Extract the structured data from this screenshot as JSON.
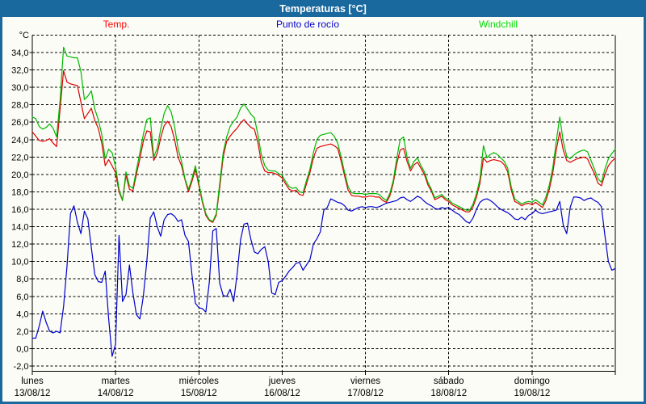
{
  "window": {
    "title": "Temperaturas [°C]"
  },
  "colors": {
    "frame_blue": "#19689e",
    "body_background": "#fcfcf6",
    "grid": "#000000",
    "temp_line": "#dc0000",
    "dew_line": "#0000cc",
    "windchill_line": "#00b800",
    "legend_temp": "#ff0000",
    "legend_dew": "#0000cc",
    "legend_windchill": "#00dd00"
  },
  "legend": [
    {
      "label": "Temp."
    },
    {
      "label": "Punto de rocío"
    },
    {
      "label": "Windchill"
    }
  ],
  "axis": {
    "unit_label": "°C",
    "y_tick_labels": [
      "34,0",
      "32,0",
      "30,0",
      "28,0",
      "26,0",
      "24,0",
      "22,0",
      "20,0",
      "18,0",
      "16,0",
      "14,0",
      "12,0",
      "10,0",
      "8,0",
      "6,0",
      "4,0",
      "2,0",
      "0,0",
      "-2,0"
    ],
    "y_tick_values": [
      34,
      32,
      30,
      28,
      26,
      24,
      22,
      20,
      18,
      16,
      14,
      12,
      10,
      8,
      6,
      4,
      2,
      0,
      -2
    ],
    "y_grid_top_value": 36
  },
  "x_days": [
    {
      "name": "lunes",
      "date": "13/08/12"
    },
    {
      "name": "martes",
      "date": "14/08/12"
    },
    {
      "name": "miércoles",
      "date": "15/08/12"
    },
    {
      "name": "jueves",
      "date": "16/08/12"
    },
    {
      "name": "viernes",
      "date": "17/08/12"
    },
    {
      "name": "sábado",
      "date": "18/08/12"
    },
    {
      "name": "domingo",
      "date": "19/08/12"
    }
  ],
  "chart_data": {
    "type": "line",
    "title": "Temperaturas [°C]",
    "ylabel": "°C",
    "ylim": [
      -2.6,
      36
    ],
    "grid": true,
    "legend_position": "top",
    "x_unit": "hours",
    "x_range": [
      0,
      168
    ],
    "x_day_starts": [
      "13/08/12",
      "14/08/12",
      "15/08/12",
      "16/08/12",
      "17/08/12",
      "18/08/12",
      "19/08/12"
    ],
    "series": [
      {
        "name": "Temp.",
        "values": [
          24.9,
          24.4,
          23.9,
          23.8,
          23.9,
          24.1,
          23.6,
          23.2,
          27.5,
          31.9,
          30.6,
          30.4,
          30.3,
          30.2,
          28.3,
          26.4,
          27.0,
          27.6,
          26.2,
          25.3,
          23.6,
          21.0,
          21.7,
          21.0,
          20.2,
          18.0,
          17.0,
          19.9,
          18.3,
          18.1,
          20.0,
          21.8,
          23.8,
          25.0,
          24.9,
          21.6,
          22.4,
          24.2,
          25.6,
          26.1,
          25.5,
          24.0,
          22.0,
          21.0,
          19.4,
          18.0,
          19.2,
          20.6,
          18.7,
          16.8,
          15.3,
          14.7,
          14.5,
          15.3,
          18.5,
          22.0,
          23.8,
          24.4,
          24.9,
          25.3,
          25.9,
          26.3,
          25.8,
          25.4,
          25.2,
          23.7,
          21.4,
          20.4,
          20.2,
          20.2,
          20.1,
          19.9,
          19.6,
          18.9,
          18.3,
          18.1,
          18.2,
          17.7,
          17.6,
          18.9,
          20.2,
          21.9,
          23.0,
          23.2,
          23.3,
          23.4,
          23.5,
          23.3,
          23.0,
          21.5,
          19.8,
          18.2,
          17.6,
          17.5,
          17.5,
          17.4,
          17.4,
          17.5,
          17.5,
          17.4,
          17.4,
          17.0,
          16.8,
          17.5,
          19.0,
          21.2,
          22.8,
          23.0,
          21.5,
          20.4,
          21.1,
          21.4,
          20.7,
          20.0,
          18.8,
          18.1,
          17.1,
          17.3,
          17.5,
          17.1,
          16.9,
          16.5,
          16.3,
          16.1,
          15.9,
          15.7,
          15.7,
          16.3,
          17.4,
          19.0,
          21.9,
          21.4,
          21.6,
          21.7,
          21.6,
          21.5,
          21.1,
          20.3,
          18.2,
          16.9,
          16.7,
          16.4,
          16.6,
          16.7,
          16.5,
          16.8,
          16.5,
          16.2,
          17.0,
          18.3,
          20.2,
          22.8,
          24.9,
          22.8,
          21.6,
          21.4,
          21.6,
          21.8,
          21.9,
          22.0,
          21.8,
          20.9,
          20.1,
          19.0,
          18.7,
          20.0,
          21.0,
          21.5,
          21.9
        ]
      },
      {
        "name": "Punto de rocío",
        "values": [
          1.2,
          1.2,
          2.6,
          4.3,
          3.0,
          2.0,
          1.8,
          2.0,
          1.8,
          4.8,
          9.5,
          15.5,
          16.4,
          14.5,
          13.2,
          15.8,
          14.9,
          11.6,
          8.5,
          7.7,
          7.6,
          8.9,
          3.5,
          -0.9,
          0.5,
          13.0,
          5.4,
          6.2,
          9.6,
          6.4,
          3.9,
          3.4,
          6.0,
          10.0,
          15.0,
          15.7,
          14.0,
          12.9,
          14.8,
          15.4,
          15.5,
          15.2,
          14.6,
          14.8,
          13.0,
          12.3,
          8.5,
          5.2,
          4.7,
          4.6,
          4.2,
          7.6,
          13.5,
          13.8,
          7.5,
          6.1,
          6.0,
          6.8,
          5.4,
          8.5,
          12.5,
          14.3,
          14.4,
          12.5,
          11.1,
          10.9,
          11.4,
          11.7,
          10.0,
          6.4,
          6.2,
          7.6,
          7.8,
          8.3,
          8.9,
          9.3,
          9.8,
          9.9,
          9.0,
          9.6,
          10.2,
          12.0,
          12.6,
          13.4,
          15.9,
          16.2,
          17.2,
          17.0,
          16.8,
          16.7,
          16.4,
          15.9,
          15.8,
          16.0,
          16.2,
          16.3,
          16.2,
          16.3,
          16.3,
          16.2,
          16.3,
          16.5,
          16.7,
          16.8,
          16.9,
          17.0,
          17.3,
          17.4,
          17.1,
          16.9,
          17.2,
          17.5,
          17.3,
          16.9,
          16.6,
          16.4,
          16.1,
          16.0,
          16.2,
          16.1,
          16.2,
          15.9,
          15.6,
          15.4,
          15.0,
          14.6,
          14.4,
          15.0,
          16.0,
          16.8,
          17.1,
          17.2,
          17.0,
          16.7,
          16.3,
          16.0,
          15.8,
          15.6,
          15.3,
          14.9,
          14.8,
          15.1,
          14.8,
          15.3,
          15.5,
          15.9,
          15.6,
          15.5,
          15.6,
          15.7,
          15.8,
          15.9,
          16.9,
          14.2,
          13.2,
          16.2,
          17.4,
          17.4,
          17.3,
          17.0,
          17.2,
          17.3,
          17.0,
          16.8,
          16.3,
          13.0,
          10.0,
          9.0,
          9.2
        ]
      },
      {
        "name": "Windchill",
        "values": [
          26.6,
          26.4,
          25.5,
          25.2,
          25.4,
          25.8,
          25.3,
          24.3,
          28.5,
          34.6,
          33.6,
          33.5,
          33.4,
          33.4,
          31.8,
          28.6,
          29.0,
          29.6,
          27.5,
          26.3,
          24.6,
          21.8,
          22.9,
          22.5,
          20.9,
          18.3,
          17.0,
          20.3,
          18.7,
          18.4,
          20.5,
          22.5,
          24.6,
          26.3,
          26.5,
          22.0,
          23.0,
          25.2,
          27.0,
          27.9,
          27.2,
          25.5,
          23.0,
          21.5,
          19.5,
          18.3,
          19.5,
          21.0,
          19.0,
          17.0,
          15.5,
          14.8,
          14.6,
          15.5,
          19.0,
          22.5,
          24.3,
          25.5,
          26.1,
          26.6,
          27.6,
          28.1,
          27.5,
          26.9,
          26.5,
          24.6,
          22.3,
          21.0,
          20.5,
          20.4,
          20.4,
          20.1,
          19.9,
          19.2,
          18.6,
          18.4,
          18.5,
          18.0,
          17.9,
          19.3,
          20.6,
          22.5,
          24.0,
          24.5,
          24.6,
          24.7,
          24.8,
          24.4,
          23.6,
          22.0,
          20.2,
          18.6,
          17.9,
          17.8,
          17.8,
          17.8,
          17.7,
          17.8,
          17.8,
          17.8,
          17.7,
          17.3,
          17.0,
          17.8,
          19.3,
          21.8,
          24.0,
          24.3,
          22.0,
          20.7,
          21.5,
          21.9,
          21.0,
          20.3,
          19.1,
          18.3,
          17.3,
          17.5,
          17.7,
          17.3,
          17.1,
          16.7,
          16.5,
          16.3,
          16.1,
          15.9,
          15.9,
          16.6,
          17.8,
          19.5,
          23.3,
          21.9,
          22.3,
          22.5,
          22.3,
          21.9,
          21.5,
          20.7,
          18.6,
          17.2,
          16.9,
          16.6,
          16.8,
          16.9,
          16.8,
          17.1,
          16.8,
          16.5,
          17.4,
          18.8,
          20.8,
          23.8,
          26.6,
          23.8,
          22.1,
          21.8,
          22.2,
          22.5,
          22.7,
          22.8,
          22.6,
          21.6,
          20.6,
          19.5,
          19.1,
          20.6,
          21.8,
          22.4,
          22.9
        ]
      }
    ]
  }
}
